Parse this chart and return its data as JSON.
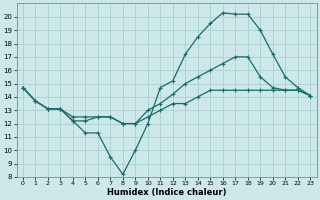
{
  "xlabel": "Humidex (Indice chaleur)",
  "bg_color": "#cce8e8",
  "line_color": "#1a6b6b",
  "grid_color": "#aad0d0",
  "xlim": [
    -0.5,
    23.5
  ],
  "ylim": [
    8,
    21
  ],
  "yticks": [
    8,
    9,
    10,
    11,
    12,
    13,
    14,
    15,
    16,
    17,
    18,
    19,
    20
  ],
  "xticks": [
    0,
    1,
    2,
    3,
    4,
    5,
    6,
    7,
    8,
    9,
    10,
    11,
    12,
    13,
    14,
    15,
    16,
    17,
    18,
    19,
    20,
    21,
    22,
    23
  ],
  "series": [
    {
      "x": [
        0,
        1,
        2,
        3,
        4,
        5,
        6,
        7,
        8,
        9,
        10,
        11,
        12,
        13,
        14,
        15,
        16,
        17,
        18,
        19,
        20,
        21,
        22,
        23
      ],
      "y": [
        14.7,
        13.7,
        13.1,
        13.1,
        12.2,
        11.3,
        11.3,
        9.5,
        8.2,
        10.0,
        12.0,
        14.7,
        15.2,
        17.2,
        18.5,
        19.5,
        20.3,
        20.2,
        20.2,
        19.0,
        17.2,
        15.5,
        14.7,
        14.1
      ]
    },
    {
      "x": [
        0,
        1,
        2,
        3,
        4,
        5,
        6,
        7,
        8,
        9,
        10,
        11,
        12,
        13,
        14,
        15,
        16,
        17,
        18,
        19,
        20,
        21,
        22,
        23
      ],
      "y": [
        14.7,
        13.7,
        13.1,
        13.1,
        12.2,
        12.2,
        12.5,
        12.5,
        12.0,
        12.0,
        13.0,
        13.5,
        14.2,
        15.0,
        15.5,
        16.0,
        16.5,
        17.0,
        17.0,
        15.5,
        14.7,
        14.5,
        14.5,
        14.1
      ]
    },
    {
      "x": [
        0,
        1,
        2,
        3,
        4,
        5,
        6,
        7,
        8,
        9,
        10,
        11,
        12,
        13,
        14,
        15,
        16,
        17,
        18,
        19,
        20,
        21,
        22,
        23
      ],
      "y": [
        14.7,
        13.7,
        13.1,
        13.1,
        12.5,
        12.5,
        12.5,
        12.5,
        12.0,
        12.0,
        12.5,
        13.0,
        13.5,
        13.5,
        14.0,
        14.5,
        14.5,
        14.5,
        14.5,
        14.5,
        14.5,
        14.5,
        14.5,
        14.1
      ]
    }
  ],
  "marker": "+",
  "markersize": 3,
  "linewidth": 0.9,
  "tick_fontsize": 5.0,
  "xlabel_fontsize": 6.0
}
